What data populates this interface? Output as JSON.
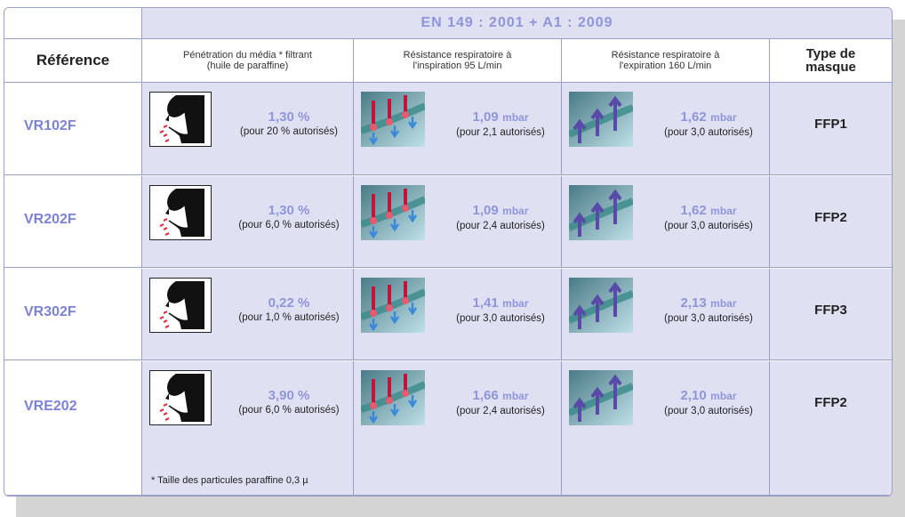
{
  "standard": "EN 149 : 2001 + A1 : 2009",
  "headers": {
    "reference": "Référence",
    "penetration": "Pénétration du média * filtrant (huile de paraffine)",
    "inspiration": "Résistance respiratoire à l'inspiration 95 L/min",
    "expiration": "Résistance respiratoire à l'expiration 160 L/min",
    "type": "Type de masque"
  },
  "rows": [
    {
      "ref": "VR102F",
      "pen": {
        "value": "1,30 %",
        "note": "(pour 20 % autorisés)"
      },
      "insp": {
        "value": "1,09",
        "unit": "mbar",
        "note": "(pour 2,1 autorisés)"
      },
      "exp": {
        "value": "1,62",
        "unit": "mbar",
        "note": "(pour 3,0 autorisés)"
      },
      "type": "FFP1"
    },
    {
      "ref": "VR202F",
      "pen": {
        "value": "1,30 %",
        "note": "(pour 6,0 % autorisés)"
      },
      "insp": {
        "value": "1,09",
        "unit": "mbar",
        "note": "(pour 2,4 autorisés)"
      },
      "exp": {
        "value": "1,62",
        "unit": "mbar",
        "note": "(pour 3,0 autorisés)"
      },
      "type": "FFP2"
    },
    {
      "ref": "VR302F",
      "pen": {
        "value": "0,22 %",
        "note": "(pour 1,0 % autorisés)"
      },
      "insp": {
        "value": "1,41",
        "unit": "mbar",
        "note": "(pour 3,0 autorisés)"
      },
      "exp": {
        "value": "2,13",
        "unit": "mbar",
        "note": "(pour 3,0 autorisés)"
      },
      "type": "FFP3"
    },
    {
      "ref": "VRE202",
      "pen": {
        "value": "3,90 %",
        "note": "(pour 6,0 % autorisés)"
      },
      "insp": {
        "value": "1,66",
        "unit": "mbar",
        "note": "(pour 2,4 autorisés)"
      },
      "exp": {
        "value": "2,10",
        "unit": "mbar",
        "note": "(pour 3,0 autorisés)"
      },
      "type": "FFP2"
    }
  ],
  "footnote": "* Taille des particules paraffine 0,3 µ",
  "colors": {
    "accent": "#8f95d8",
    "ref_text": "#7b82d6",
    "cell_bg": "#dfe1f3",
    "border": "#9a9fc6"
  },
  "icons": {
    "penetration": "face-mask-icon",
    "inspiration": "inhale-arrows-icon",
    "expiration": "exhale-arrows-icon"
  }
}
